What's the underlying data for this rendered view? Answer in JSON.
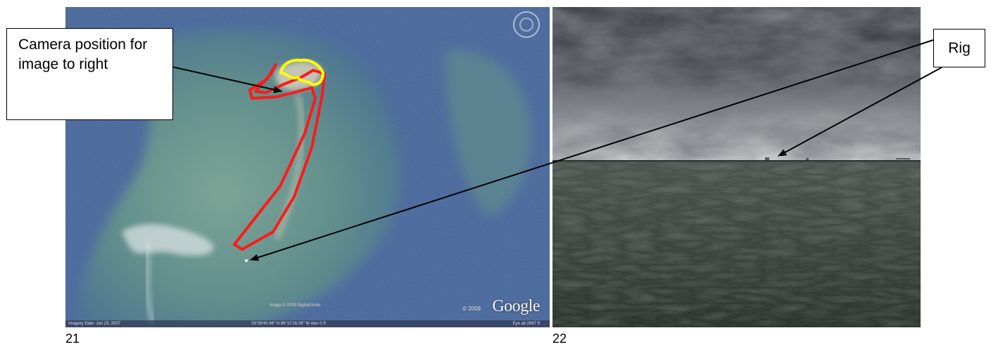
{
  "callouts": {
    "camera_label": "Camera position for image to right",
    "rig_label": "Rig"
  },
  "captions": {
    "left": "21",
    "right": "22"
  },
  "satellite": {
    "logo": "Google",
    "logo_year": "© 2009",
    "imagery_date": "Imagery Date: Jan 23, 2007",
    "coordinates": "29°28'40.66\" N   89°10'16.09\" W   elev   0 ft",
    "eye_alt": "Eye alt   2667 ft",
    "credits": "Image © 2009 DigitalGlobe"
  },
  "colors": {
    "outline_island": "#ff1a1a",
    "outline_camera": "#ffff00",
    "water_blue": "#3e5f95",
    "shoal_green": "#6d9c86",
    "sky_dark": "#3a3d40",
    "sea_dark": "#3a423b"
  },
  "icons": [
    "compass-icon"
  ]
}
